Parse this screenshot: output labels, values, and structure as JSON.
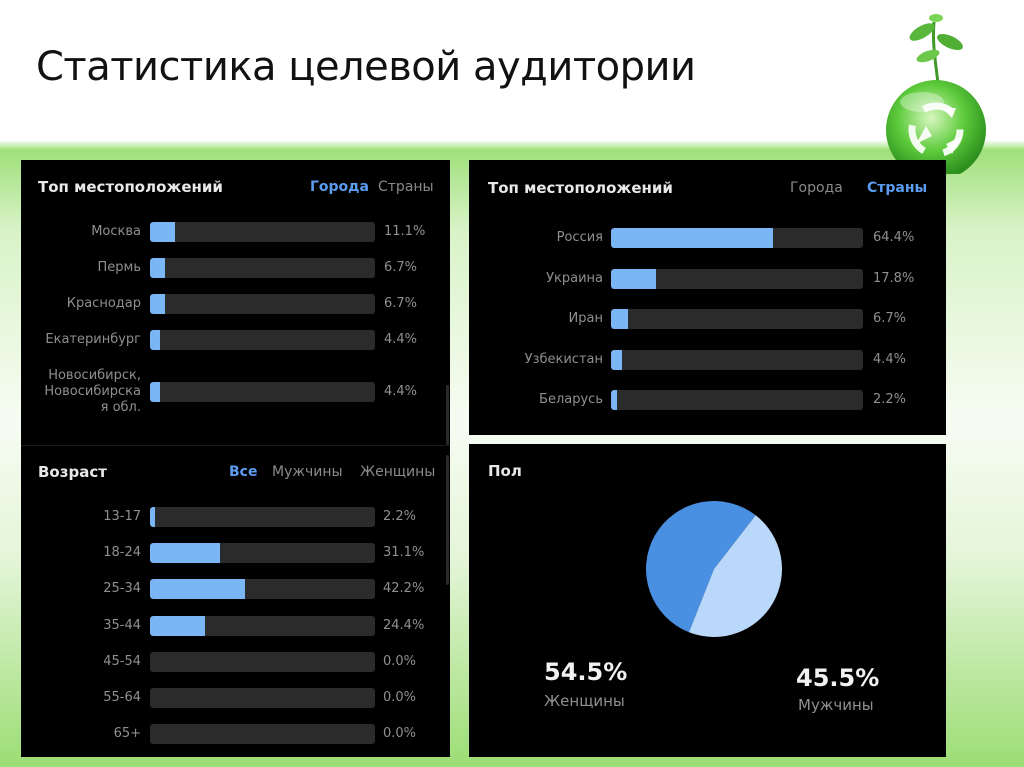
{
  "title": "Статистика целевой аудитории",
  "colors": {
    "bar_fill": "#7ab5f5",
    "bar_track": "#2b2b2b",
    "tab_active": "#5b9cf0",
    "pie_women": "#4a90e2",
    "pie_men": "#b9d8fa"
  },
  "cities_panel": {
    "title": "Топ местоположений",
    "tabs": [
      {
        "label": "Города",
        "active": true
      },
      {
        "label": "Страны",
        "active": false
      }
    ],
    "rows": [
      {
        "label": "Москва",
        "value": 11.1,
        "text": "11.1%"
      },
      {
        "label": "Пермь",
        "value": 6.7,
        "text": "6.7%"
      },
      {
        "label": "Краснодар",
        "value": 6.7,
        "text": "6.7%"
      },
      {
        "label": "Екатеринбург",
        "value": 4.4,
        "text": "4.4%"
      },
      {
        "label": "Новосибирск,\nНовосибирска\nя обл.",
        "value": 4.4,
        "text": "4.4%"
      }
    ]
  },
  "countries_panel": {
    "title": "Топ местоположений",
    "tabs": [
      {
        "label": "Города",
        "active": false
      },
      {
        "label": "Страны",
        "active": true
      }
    ],
    "rows": [
      {
        "label": "Россия",
        "value": 64.4,
        "text": "64.4%"
      },
      {
        "label": "Украина",
        "value": 17.8,
        "text": "17.8%"
      },
      {
        "label": "Иран",
        "value": 6.7,
        "text": "6.7%"
      },
      {
        "label": "Узбекистан",
        "value": 4.4,
        "text": "4.4%"
      },
      {
        "label": "Беларусь",
        "value": 2.2,
        "text": "2.2%"
      }
    ]
  },
  "age_panel": {
    "title": "Возраст",
    "tabs": [
      {
        "label": "Все",
        "active": true
      },
      {
        "label": "Мужчины",
        "active": false
      },
      {
        "label": "Женщины",
        "active": false
      }
    ],
    "rows": [
      {
        "label": "13-17",
        "value": 2.2,
        "text": "2.2%"
      },
      {
        "label": "18-24",
        "value": 31.1,
        "text": "31.1%"
      },
      {
        "label": "25-34",
        "value": 42.2,
        "text": "42.2%"
      },
      {
        "label": "35-44",
        "value": 24.4,
        "text": "24.4%"
      },
      {
        "label": "45-54",
        "value": 0.0,
        "text": "0.0%"
      },
      {
        "label": "55-64",
        "value": 0.0,
        "text": "0.0%"
      },
      {
        "label": "65+",
        "value": 0.0,
        "text": "0.0%"
      }
    ]
  },
  "gender_panel": {
    "title": "Пол",
    "women": {
      "pct": "54.5%",
      "label": "Женщины"
    },
    "men": {
      "pct": "45.5%",
      "label": "Мужчины"
    }
  },
  "chart_data": [
    {
      "type": "bar",
      "title": "Топ местоположений",
      "categories": [
        "Москва",
        "Пермь",
        "Краснодар",
        "Екатеринбург",
        "Новосибирск, Новосибирская обл."
      ],
      "values": [
        11.1,
        6.7,
        6.7,
        4.4,
        4.4
      ],
      "ylim": [
        0,
        100
      ]
    },
    {
      "type": "bar",
      "title": "Топ местоположений",
      "categories": [
        "Россия",
        "Украина",
        "Иран",
        "Узбекистан",
        "Беларусь"
      ],
      "values": [
        64.4,
        17.8,
        6.7,
        4.4,
        2.2
      ],
      "ylim": [
        0,
        100
      ]
    },
    {
      "type": "bar",
      "title": "Возраст",
      "categories": [
        "13-17",
        "18-24",
        "25-34",
        "35-44",
        "45-54",
        "55-64",
        "65+"
      ],
      "values": [
        2.2,
        31.1,
        42.2,
        24.4,
        0.0,
        0.0,
        0.0
      ],
      "ylim": [
        0,
        100
      ]
    },
    {
      "type": "pie",
      "title": "Пол",
      "categories": [
        "Женщины",
        "Мужчины"
      ],
      "values": [
        54.5,
        45.5
      ]
    }
  ]
}
